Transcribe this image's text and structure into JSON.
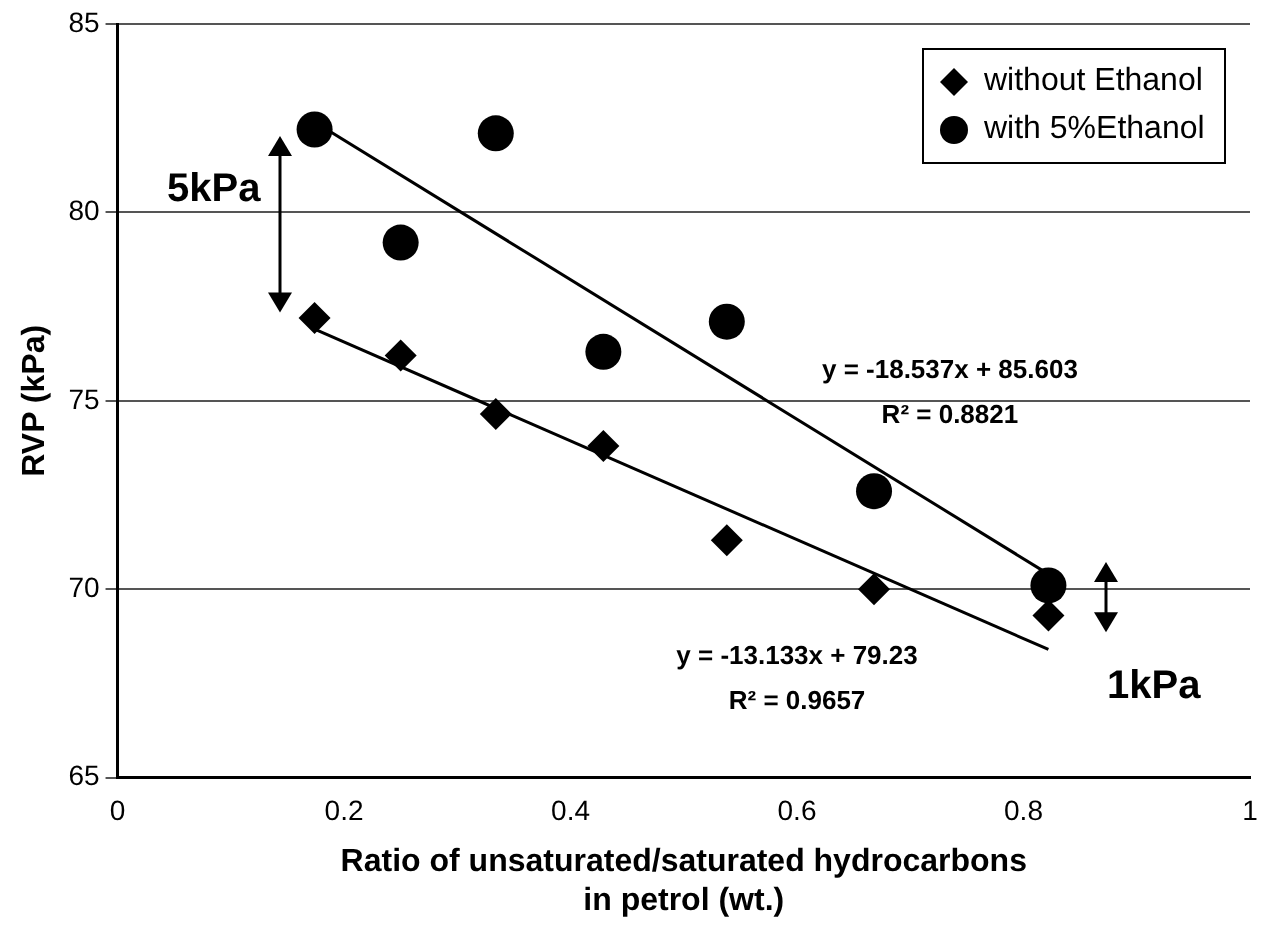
{
  "chart_data": {
    "type": "scatter",
    "xlabel": "Ratio of unsaturated/saturated hydrocarbons\nin petrol (wt.)",
    "ylabel": "RVP (kPa)",
    "xlim": [
      0,
      1
    ],
    "xticks": [
      0,
      0.2,
      0.4,
      0.6,
      0.8,
      1
    ],
    "ylim": [
      65,
      85
    ],
    "yticks": [
      65,
      70,
      75,
      80,
      85
    ],
    "grid": "y",
    "legend": "top right",
    "series": [
      {
        "name": "without Ethanol",
        "color": "#000000",
        "marker": "diamond",
        "x": [
          0.174,
          0.25,
          0.334,
          0.429,
          0.538,
          0.668,
          0.822
        ],
        "values": [
          77.2,
          76.2,
          74.65,
          73.8,
          71.3,
          70.0,
          69.3
        ]
      },
      {
        "name": "with 5%Ethanol",
        "color": "#000000",
        "marker": "circle",
        "x": [
          0.174,
          0.25,
          0.334,
          0.429,
          0.538,
          0.668,
          0.822
        ],
        "values": [
          82.2,
          79.2,
          82.1,
          76.3,
          77.1,
          72.6,
          70.1
        ]
      },
      {
        "type": "line",
        "color": "#000000",
        "marker": "none",
        "x": [
          0.174,
          0.822
        ],
        "values": [
          82.4,
          70.4
        ]
      },
      {
        "type": "line",
        "color": "#000000",
        "marker": "none",
        "x": [
          0.174,
          0.822
        ],
        "values": [
          76.9,
          68.4
        ]
      }
    ],
    "annotations": [
      "5kPa",
      "1kPa",
      "y = -18.537x + 85.603",
      "R² = 0.8821",
      "y = -13.133x + 79.23",
      "R² = 0.9657"
    ]
  }
}
